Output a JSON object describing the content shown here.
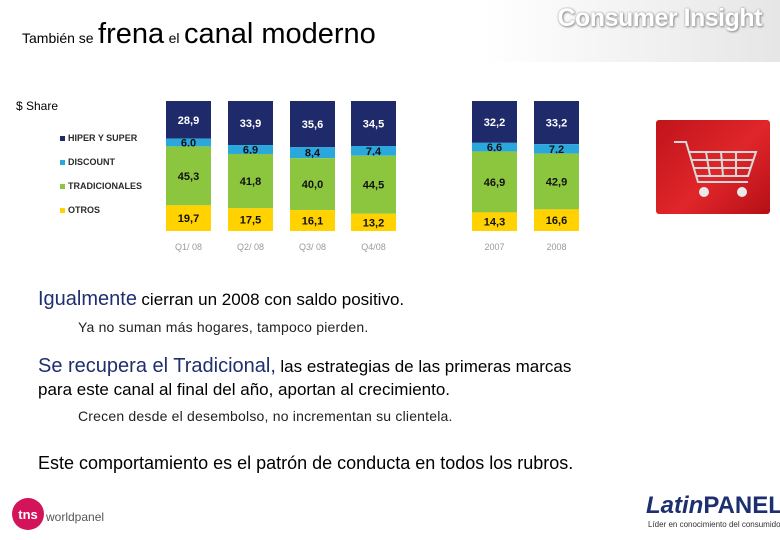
{
  "header": {
    "title_part1": "También se",
    "title_part2": "frena",
    "title_part3": "el",
    "title_part4": "canal moderno",
    "brand": "Consumer Insight"
  },
  "chart_data": {
    "type": "bar",
    "stacked": true,
    "ylabel": "$ Share",
    "categories": [
      "Q1/ 08",
      "Q2/ 08",
      "Q3/ 08",
      "Q4/08",
      "2007",
      "2008"
    ],
    "series": [
      {
        "name": "HIPER Y SUPER",
        "values": [
          28.9,
          33.9,
          35.6,
          34.5,
          32.2,
          33.2
        ],
        "labels": [
          "28,9",
          "33,9",
          "35,6",
          "34,5",
          "32,2",
          "33,2"
        ],
        "color": "#1f2a6b"
      },
      {
        "name": "DISCOUNT",
        "values": [
          6.0,
          6.9,
          8.4,
          7.4,
          6.6,
          7.2
        ],
        "labels": [
          "6,0",
          "6,9",
          "8,4",
          "7,4",
          "6,6",
          "7,2"
        ],
        "color": "#2aa8de"
      },
      {
        "name": "TRADICIONALES",
        "values": [
          45.3,
          41.8,
          40.0,
          44.5,
          46.9,
          42.9
        ],
        "labels": [
          "45,3",
          "41,8",
          "40,0",
          "44,5",
          "46,9",
          "42,9"
        ],
        "color": "#8cc63f"
      },
      {
        "name": "OTROS",
        "values": [
          19.7,
          17.5,
          16.1,
          13.2,
          14.3,
          16.6
        ],
        "labels": [
          "19,7",
          "17,5",
          "16,1",
          "13,2",
          "14,3",
          "16,6"
        ],
        "color": "#ffd200"
      }
    ],
    "legend": [
      "HIPER Y SUPER",
      "DISCOUNT",
      "TRADICIONALES",
      "OTROS"
    ],
    "legend_position": "left"
  },
  "body": {
    "line1_big": "Igualmente",
    "line1_rest": "cierran un 2008 con saldo positivo.",
    "line2": "Ya no suman más hogares, tampoco pierden.",
    "line3_big": "Se recupera el Tradicional,",
    "line3_rest": "las estrategias de las primeras marcas",
    "line4": "para este canal al final del año, aportan al crecimiento.",
    "line5": "Crecen desde el desembolso, no incrementan su clientela.",
    "line6": "Este comportamiento es el patrón de conducta en todos los rubros."
  },
  "footer": {
    "tns": "tns",
    "worldpanel": "worldpanel",
    "latin": "Latin",
    "panel": "PANEL",
    "tagline": "Líder en conocimiento del consumidor"
  }
}
